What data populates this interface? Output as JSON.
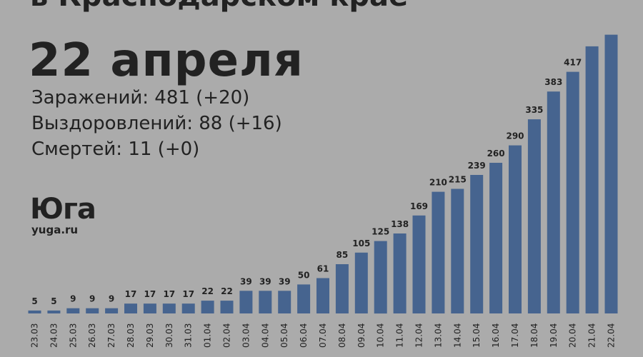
{
  "header": {
    "title": "в Краснодарском крае",
    "date": "22 апреля"
  },
  "stats": {
    "infected": "Заражений: 481 (+20)",
    "recovered": "Выздоровлений: 88 (+16)",
    "deaths": "Смертей: 11 (+0)"
  },
  "logo": {
    "name": "Юга",
    "url": "yuga.ru"
  },
  "colors": {
    "background": "#ababab",
    "bar": "#46648f",
    "text": "#222222"
  },
  "chart_data": {
    "type": "bar",
    "categories": [
      "23.03",
      "24.03",
      "25.03",
      "26.03",
      "27.03",
      "28.03",
      "29.03",
      "30.03",
      "31.03",
      "01.04",
      "02.04",
      "03.04",
      "04.04",
      "05.04",
      "06.04",
      "07.04",
      "08.04",
      "09.04",
      "10.04",
      "11.04",
      "12.04",
      "13.04",
      "14.04",
      "15.04",
      "16.04",
      "17.04",
      "18.04",
      "19.04",
      "20.04",
      "21.04",
      "22.04"
    ],
    "values": [
      5,
      5,
      9,
      9,
      9,
      17,
      17,
      17,
      17,
      22,
      22,
      39,
      39,
      39,
      50,
      61,
      85,
      105,
      125,
      138,
      169,
      210,
      215,
      239,
      260,
      290,
      335,
      383,
      417,
      461,
      481
    ],
    "labels": [
      "5",
      "5",
      "9",
      "9",
      "9",
      "17",
      "17",
      "17",
      "17",
      "22",
      "22",
      "39",
      "39",
      "39",
      "50",
      "61",
      "85",
      "105",
      "125",
      "138",
      "169",
      "210",
      "215",
      "239",
      "260",
      "290",
      "335",
      "383",
      "417",
      "",
      ""
    ],
    "title": "",
    "xlabel": "",
    "ylabel": "",
    "grid": false,
    "legend": false
  }
}
